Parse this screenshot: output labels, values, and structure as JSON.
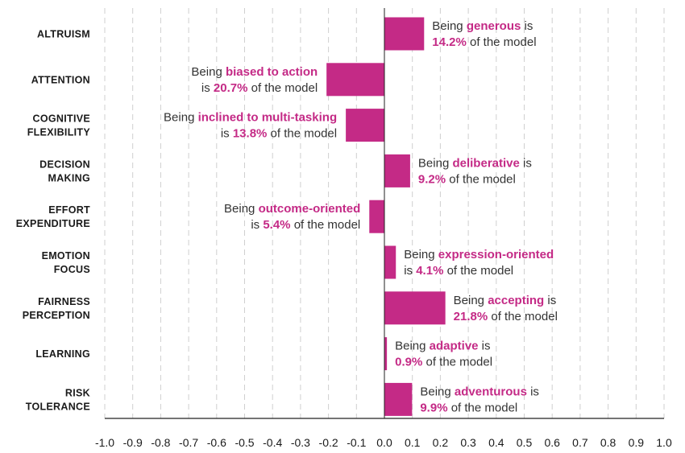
{
  "chart_data": {
    "type": "bar",
    "orientation": "horizontal",
    "colors": {
      "bar": "#c42a86",
      "highlight": "#c42a86",
      "text": "#333333",
      "grid": "#cfcfcf",
      "axis": "#222222"
    },
    "xlim": [
      -1.0,
      1.0
    ],
    "xticks": [
      "-1.0",
      "-0.9",
      "-0.8",
      "-0.7",
      "-0.6",
      "-0.5",
      "-0.4",
      "-0.3",
      "-0.2",
      "-0.1",
      "0.0",
      "0.1",
      "0.2",
      "0.3",
      "0.4",
      "0.5",
      "0.6",
      "0.7",
      "0.8",
      "0.9",
      "1.0"
    ],
    "grid": "vertical dashed",
    "categories": [
      {
        "label": [
          "ALTRUISM"
        ],
        "value": 0.142,
        "annotation": [
          [
            {
              "t": "Being "
            },
            {
              "t": "generous",
              "hl": true
            },
            {
              "t": " is"
            }
          ],
          [
            {
              "t": "14.2%",
              "hl": true
            },
            {
              "t": " of the model"
            }
          ]
        ]
      },
      {
        "label": [
          "ATTENTION"
        ],
        "value": -0.207,
        "annotation": [
          [
            {
              "t": "Being "
            },
            {
              "t": "biased to action",
              "hl": true
            }
          ],
          [
            {
              "t": "is "
            },
            {
              "t": "20.7%",
              "hl": true
            },
            {
              "t": " of the model"
            }
          ]
        ]
      },
      {
        "label": [
          "COGNITIVE",
          "FLEXIBILITY"
        ],
        "value": -0.138,
        "annotation": [
          [
            {
              "t": "Being "
            },
            {
              "t": "inclined to multi-tasking",
              "hl": true
            }
          ],
          [
            {
              "t": "is "
            },
            {
              "t": "13.8%",
              "hl": true
            },
            {
              "t": " of the model"
            }
          ]
        ]
      },
      {
        "label": [
          "DECISION",
          "MAKING"
        ],
        "value": 0.092,
        "annotation": [
          [
            {
              "t": "Being "
            },
            {
              "t": "deliberative",
              "hl": true
            },
            {
              "t": " is"
            }
          ],
          [
            {
              "t": "9.2%",
              "hl": true
            },
            {
              "t": " of the model"
            }
          ]
        ]
      },
      {
        "label": [
          "EFFORT",
          "EXPENDITURE"
        ],
        "value": -0.054,
        "annotation": [
          [
            {
              "t": "Being "
            },
            {
              "t": "outcome-oriented",
              "hl": true
            }
          ],
          [
            {
              "t": "is "
            },
            {
              "t": "5.4%",
              "hl": true
            },
            {
              "t": " of the model"
            }
          ]
        ]
      },
      {
        "label": [
          "EMOTION",
          "FOCUS"
        ],
        "value": 0.041,
        "annotation": [
          [
            {
              "t": "Being "
            },
            {
              "t": "expression-oriented",
              "hl": true
            }
          ],
          [
            {
              "t": "is "
            },
            {
              "t": "4.1%",
              "hl": true
            },
            {
              "t": " of the model"
            }
          ]
        ]
      },
      {
        "label": [
          "FAIRNESS",
          "PERCEPTION"
        ],
        "value": 0.218,
        "annotation": [
          [
            {
              "t": "Being "
            },
            {
              "t": "accepting",
              "hl": true
            },
            {
              "t": " is"
            }
          ],
          [
            {
              "t": "21.8%",
              "hl": true
            },
            {
              "t": " of the model"
            }
          ]
        ]
      },
      {
        "label": [
          "LEARNING"
        ],
        "value": 0.009,
        "annotation": [
          [
            {
              "t": "Being "
            },
            {
              "t": "adaptive",
              "hl": true
            },
            {
              "t": " is"
            }
          ],
          [
            {
              "t": "0.9%",
              "hl": true
            },
            {
              "t": " of the model"
            }
          ]
        ]
      },
      {
        "label": [
          "RISK",
          "TOLERANCE"
        ],
        "value": 0.099,
        "annotation": [
          [
            {
              "t": "Being "
            },
            {
              "t": "adventurous",
              "hl": true
            },
            {
              "t": " is"
            }
          ],
          [
            {
              "t": "9.9%",
              "hl": true
            },
            {
              "t": " of the model"
            }
          ]
        ]
      }
    ]
  }
}
